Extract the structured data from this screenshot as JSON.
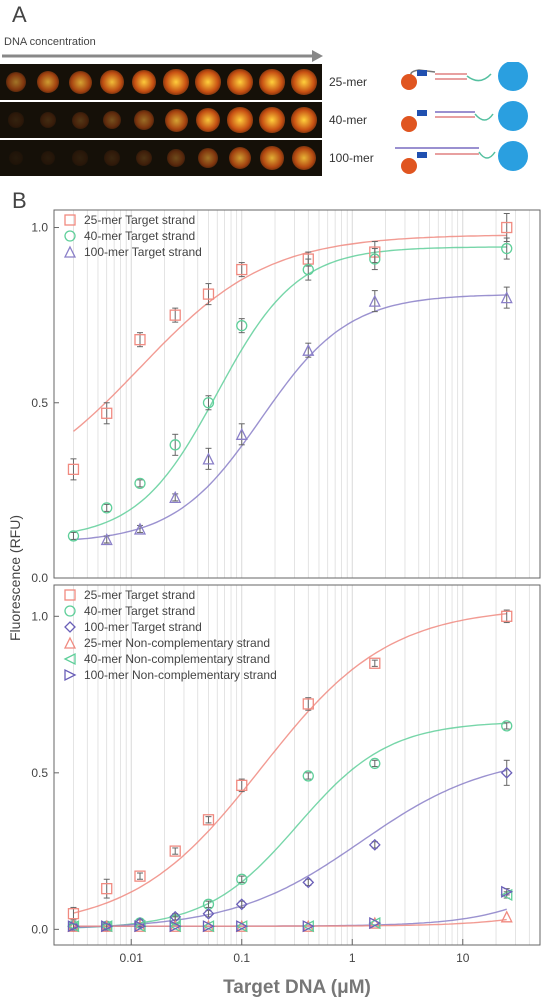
{
  "panelA": {
    "label": "A",
    "concentration_label": "DNA concentration",
    "rows": [
      {
        "label": "25-mer",
        "intensity": [
          0.55,
          0.72,
          0.75,
          0.85,
          0.9,
          0.92,
          0.95,
          0.95,
          0.96,
          0.97
        ]
      },
      {
        "label": "40-mer",
        "intensity": [
          0.12,
          0.18,
          0.25,
          0.38,
          0.52,
          0.75,
          0.88,
          0.92,
          0.95,
          0.96
        ]
      },
      {
        "label": "100-mer",
        "intensity": [
          0.06,
          0.08,
          0.1,
          0.14,
          0.22,
          0.35,
          0.55,
          0.72,
          0.8,
          0.82
        ]
      }
    ]
  },
  "panelB": {
    "label": "B"
  },
  "colors": {
    "s25": "#f08a80",
    "s40": "#5fcf9a",
    "s100": "#8a7fc8",
    "s100b": "#6a5fb8",
    "dark": "#333333",
    "grid": "#d8d8d8"
  },
  "chart_data": [
    {
      "type": "scatter",
      "xscale": "log",
      "xlim": [
        0.002,
        50
      ],
      "ylim": [
        0,
        1.05
      ],
      "yticks": [
        0.0,
        0.5,
        1.0
      ],
      "grid": true,
      "legend_position": "top-left",
      "series": [
        {
          "name": "25-mer Target strand",
          "marker": "square",
          "color": "#f08a80",
          "x": [
            0.003,
            0.006,
            0.012,
            0.025,
            0.05,
            0.1,
            0.4,
            1.6,
            25
          ],
          "y": [
            0.31,
            0.47,
            0.68,
            0.75,
            0.81,
            0.88,
            0.91,
            0.93,
            1.0
          ],
          "err": [
            0.03,
            0.03,
            0.02,
            0.02,
            0.03,
            0.02,
            0.02,
            0.03,
            0.04
          ]
        },
        {
          "name": "40-mer Target strand",
          "marker": "circle",
          "color": "#5fcf9a",
          "x": [
            0.003,
            0.006,
            0.012,
            0.025,
            0.05,
            0.1,
            0.4,
            1.6,
            25
          ],
          "y": [
            0.12,
            0.2,
            0.27,
            0.38,
            0.5,
            0.72,
            0.88,
            0.91,
            0.94
          ],
          "err": [
            0.01,
            0.01,
            0.01,
            0.03,
            0.02,
            0.02,
            0.03,
            0.03,
            0.03
          ]
        },
        {
          "name": "100-mer Target strand",
          "marker": "triangle-up",
          "color": "#8a7fc8",
          "x": [
            0.006,
            0.012,
            0.025,
            0.05,
            0.1,
            0.4,
            1.6,
            25
          ],
          "y": [
            0.11,
            0.14,
            0.23,
            0.34,
            0.41,
            0.65,
            0.79,
            0.8
          ],
          "err": [
            0.01,
            0.01,
            0.01,
            0.03,
            0.03,
            0.02,
            0.03,
            0.03
          ]
        }
      ],
      "fits": [
        {
          "color": "#f08a80",
          "bottom": 0.22,
          "top": 0.98,
          "ec50": 0.012,
          "hill": 0.75
        },
        {
          "color": "#5fcf9a",
          "bottom": 0.11,
          "top": 0.945,
          "ec50": 0.06,
          "hill": 1.2
        },
        {
          "color": "#8a7fc8",
          "bottom": 0.1,
          "top": 0.81,
          "ec50": 0.15,
          "hill": 1.1
        }
      ]
    },
    {
      "type": "scatter",
      "xscale": "log",
      "xlim": [
        0.002,
        50
      ],
      "ylim": [
        -0.05,
        1.1
      ],
      "yticks": [
        0.0,
        0.5,
        1.0
      ],
      "xticks": [
        0.01,
        0.1,
        1,
        10
      ],
      "xtick_labels": [
        "0.01",
        "0.1",
        "1",
        "10"
      ],
      "xlabel": "Target DNA (μM)",
      "ylabel": "Fluorescence (RFU)",
      "grid": true,
      "legend_position": "top-left",
      "series": [
        {
          "name": "25-mer Target strand",
          "marker": "square",
          "color": "#f08a80",
          "x": [
            0.003,
            0.006,
            0.012,
            0.025,
            0.05,
            0.1,
            0.4,
            1.6,
            25
          ],
          "y": [
            0.05,
            0.13,
            0.17,
            0.25,
            0.35,
            0.46,
            0.72,
            0.85,
            1.0
          ],
          "err": [
            0.02,
            0.03,
            0.01,
            0.01,
            0.01,
            0.02,
            0.02,
            0.01,
            0.02
          ]
        },
        {
          "name": "40-mer Target strand",
          "marker": "circle",
          "color": "#5fcf9a",
          "x": [
            0.003,
            0.006,
            0.012,
            0.025,
            0.05,
            0.1,
            0.4,
            1.6,
            25
          ],
          "y": [
            0.01,
            0.01,
            0.02,
            0.03,
            0.08,
            0.16,
            0.49,
            0.53,
            0.65
          ],
          "err": [
            0.01,
            0.01,
            0.01,
            0.01,
            0.01,
            0.01,
            0.01,
            0.01,
            0.01
          ]
        },
        {
          "name": "100-mer Target strand",
          "marker": "diamond",
          "color": "#6a5fb8",
          "x": [
            0.003,
            0.006,
            0.012,
            0.025,
            0.05,
            0.1,
            0.4,
            1.6,
            25
          ],
          "y": [
            0.01,
            0.01,
            0.02,
            0.04,
            0.05,
            0.08,
            0.15,
            0.27,
            0.5
          ],
          "err": [
            0.01,
            0.01,
            0.01,
            0.01,
            0.01,
            0.01,
            0.01,
            0.01,
            0.04
          ]
        },
        {
          "name": "25-mer Non-complementary strand",
          "marker": "triangle-up",
          "color": "#f08a80",
          "x": [
            0.003,
            0.006,
            0.012,
            0.025,
            0.05,
            0.1,
            0.4,
            1.6,
            25
          ],
          "y": [
            0.01,
            0.01,
            0.01,
            0.01,
            0.01,
            0.01,
            0.01,
            0.02,
            0.04
          ],
          "err": [
            0,
            0,
            0,
            0,
            0,
            0,
            0,
            0,
            0
          ]
        },
        {
          "name": "40-mer Non-complementary strand",
          "marker": "triangle-left",
          "color": "#5fcf9a",
          "x": [
            0.003,
            0.006,
            0.012,
            0.025,
            0.05,
            0.1,
            0.4,
            1.6,
            25
          ],
          "y": [
            0.01,
            0.01,
            0.01,
            0.01,
            0.01,
            0.01,
            0.01,
            0.02,
            0.11
          ],
          "err": [
            0,
            0,
            0,
            0,
            0,
            0,
            0,
            0,
            0.01
          ]
        },
        {
          "name": "100-mer Non-complementary strand",
          "marker": "triangle-right",
          "color": "#6a5fb8",
          "x": [
            0.003,
            0.006,
            0.012,
            0.025,
            0.05,
            0.1,
            0.4,
            1.6,
            25
          ],
          "y": [
            0.01,
            0.01,
            0.01,
            0.01,
            0.01,
            0.01,
            0.01,
            0.02,
            0.12
          ],
          "err": [
            0,
            0,
            0,
            0,
            0,
            0,
            0,
            0,
            0.01
          ]
        }
      ],
      "fits": [
        {
          "color": "#f08a80",
          "bottom": 0.0,
          "top": 1.03,
          "ec50": 0.15,
          "hill": 0.75
        },
        {
          "color": "#5fcf9a",
          "bottom": 0.0,
          "top": 0.665,
          "ec50": 0.32,
          "hill": 1.05
        },
        {
          "color": "#8a7fc8",
          "bottom": 0.0,
          "top": 0.56,
          "ec50": 1.2,
          "hill": 0.75
        },
        {
          "color": "#8a7fc8",
          "bottom": 0.01,
          "top": 0.5,
          "ec50": 200,
          "hill": 1.0
        },
        {
          "color": "#f08a80",
          "bottom": 0.01,
          "top": 0.2,
          "ec50": 200,
          "hill": 1.0
        }
      ]
    }
  ]
}
